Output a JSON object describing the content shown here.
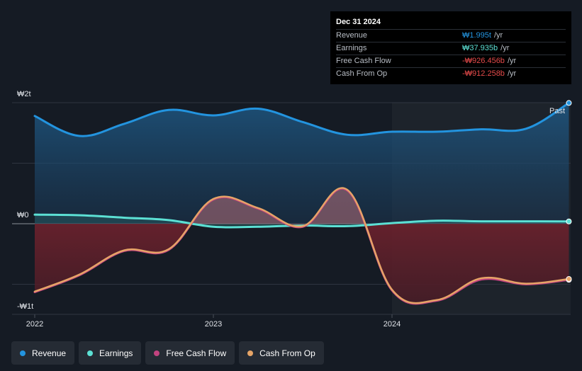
{
  "tooltip": {
    "date": "Dec 31 2024",
    "rows": [
      {
        "label": "Revenue",
        "value": "₩1.995t",
        "unit": "/yr",
        "color": "#2394df"
      },
      {
        "label": "Earnings",
        "value": "₩37.935b",
        "unit": "/yr",
        "color": "#5ce0d4"
      },
      {
        "label": "Free Cash Flow",
        "value": "-₩926.456b",
        "unit": "/yr",
        "color": "#e74b4b"
      },
      {
        "label": "Cash From Op",
        "value": "-₩912.258b",
        "unit": "/yr",
        "color": "#e74b4b"
      }
    ]
  },
  "legend": [
    {
      "label": "Revenue",
      "color": "#2394df"
    },
    {
      "label": "Earnings",
      "color": "#5ce0d4"
    },
    {
      "label": "Free Cash Flow",
      "color": "#c2437f"
    },
    {
      "label": "Cash From Op",
      "color": "#e6a467"
    }
  ],
  "chart_data": {
    "type": "area",
    "y_unit": "KRW trillions",
    "ylim": [
      -1.5,
      2.0
    ],
    "y_ticks": [
      {
        "value": 2,
        "label": "₩2t"
      },
      {
        "value": 0,
        "label": "₩0"
      },
      {
        "value": -1,
        "label": "-₩1t"
      }
    ],
    "x_ticks": [
      {
        "value": 2022.0,
        "label": "2022"
      },
      {
        "value": 2023.0,
        "label": "2023"
      },
      {
        "value": 2024.0,
        "label": "2024"
      }
    ],
    "xlim": [
      2021.87,
      2024.99
    ],
    "past_label": "Past",
    "past_start": 2024.0,
    "series": [
      {
        "name": "Revenue",
        "color": "#2394df",
        "points": [
          [
            2022.0,
            1.78
          ],
          [
            2022.25,
            1.45
          ],
          [
            2022.5,
            1.65
          ],
          [
            2022.75,
            1.88
          ],
          [
            2023.0,
            1.79
          ],
          [
            2023.25,
            1.9
          ],
          [
            2023.5,
            1.68
          ],
          [
            2023.75,
            1.47
          ],
          [
            2024.0,
            1.52
          ],
          [
            2024.25,
            1.52
          ],
          [
            2024.5,
            1.56
          ],
          [
            2024.75,
            1.57
          ],
          [
            2024.99,
            1.995
          ]
        ]
      },
      {
        "name": "Earnings",
        "color": "#5ce0d4",
        "points": [
          [
            2022.0,
            0.15
          ],
          [
            2022.25,
            0.14
          ],
          [
            2022.5,
            0.1
          ],
          [
            2022.75,
            0.06
          ],
          [
            2023.0,
            -0.05
          ],
          [
            2023.25,
            -0.05
          ],
          [
            2023.5,
            -0.03
          ],
          [
            2023.75,
            -0.04
          ],
          [
            2024.0,
            0.01
          ],
          [
            2024.25,
            0.05
          ],
          [
            2024.5,
            0.04
          ],
          [
            2024.75,
            0.04
          ],
          [
            2024.99,
            0.038
          ]
        ]
      },
      {
        "name": "Free Cash Flow",
        "color": "#c2437f",
        "points": [
          [
            2022.0,
            -1.13
          ],
          [
            2022.25,
            -0.85
          ],
          [
            2022.5,
            -0.45
          ],
          [
            2022.75,
            -0.43
          ],
          [
            2023.0,
            0.4
          ],
          [
            2023.25,
            0.25
          ],
          [
            2023.5,
            -0.05
          ],
          [
            2023.75,
            0.55
          ],
          [
            2024.0,
            -1.1
          ],
          [
            2024.25,
            -1.27
          ],
          [
            2024.5,
            -0.92
          ],
          [
            2024.75,
            -1.0
          ],
          [
            2024.99,
            -0.926
          ]
        ]
      },
      {
        "name": "Cash From Op",
        "color": "#e6a467",
        "points": [
          [
            2022.0,
            -1.12
          ],
          [
            2022.25,
            -0.84
          ],
          [
            2022.5,
            -0.44
          ],
          [
            2022.75,
            -0.42
          ],
          [
            2023.0,
            0.41
          ],
          [
            2023.25,
            0.26
          ],
          [
            2023.5,
            -0.04
          ],
          [
            2023.75,
            0.56
          ],
          [
            2024.0,
            -1.09
          ],
          [
            2024.25,
            -1.26
          ],
          [
            2024.5,
            -0.9
          ],
          [
            2024.75,
            -0.99
          ],
          [
            2024.99,
            -0.912
          ]
        ]
      }
    ]
  }
}
